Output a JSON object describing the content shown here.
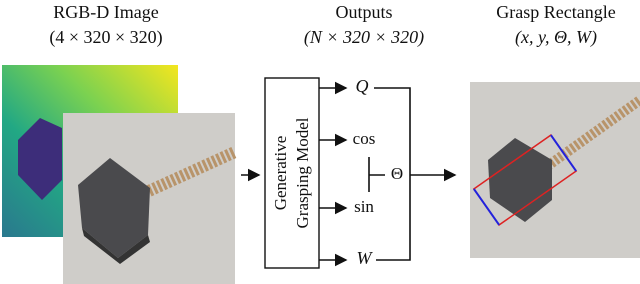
{
  "input": {
    "title": "RGB-D Image",
    "shape": "(4 × 320 × 320)"
  },
  "outputs": {
    "title": "Outputs",
    "shape": "(N × 320 × 320)"
  },
  "model": {
    "label_lines": [
      "Generative",
      "Grasping Model"
    ]
  },
  "output_nodes": {
    "q": "Q",
    "cos": "cos",
    "sin": "sin",
    "theta": "Θ",
    "w": "W"
  },
  "result": {
    "title": "Grasp Rectangle",
    "params": "(x, y, Θ, W)"
  }
}
